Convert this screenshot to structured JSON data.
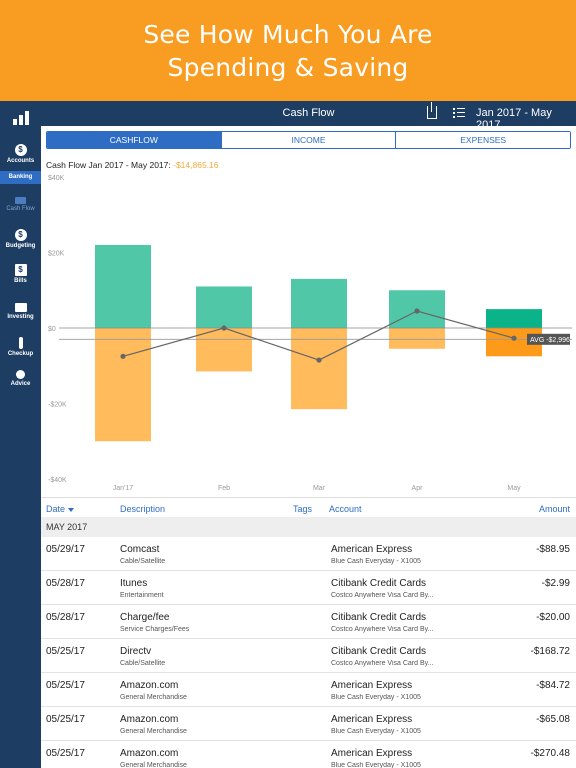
{
  "banner": {
    "line1": "See How Much You Are",
    "line2": "Spending & Saving"
  },
  "sidebar": {
    "items": [
      {
        "label": "Accounts",
        "icon": "dollar-icon"
      },
      {
        "label": "Banking",
        "icon": "none"
      },
      {
        "label": "Cash Flow",
        "icon": "cashflow-icon"
      },
      {
        "label": "Budgeting",
        "icon": "budget-icon"
      },
      {
        "label": "Bills",
        "icon": "bills-icon"
      },
      {
        "label": "Investing",
        "icon": "investing-icon"
      },
      {
        "label": "Checkup",
        "icon": "checkup-icon"
      },
      {
        "label": "Advice",
        "icon": "advice-icon"
      }
    ]
  },
  "topbar": {
    "title": "Cash Flow",
    "range": "Jan 2017 - May 2017"
  },
  "tabs": [
    {
      "label": "CASHFLOW",
      "active": true
    },
    {
      "label": "INCOME",
      "active": false
    },
    {
      "label": "EXPENSES",
      "active": false
    }
  ],
  "summary": {
    "label": "Cash Flow Jan 2017 - May 2017:",
    "value": "-$14,865.16"
  },
  "chart_data": {
    "type": "bar",
    "categories": [
      "Jan'17",
      "Feb",
      "Mar",
      "Apr",
      "May"
    ],
    "y_tick_labels": [
      "$40K",
      "$20K",
      "$0",
      "-$20K",
      "-$40K"
    ],
    "ylim": [
      -40000,
      40000
    ],
    "series": [
      {
        "values": [
          22000,
          11000,
          13000,
          10000,
          5000
        ],
        "color": "#50c8a8"
      },
      {
        "values": [
          -30000,
          -11500,
          -21500,
          -5500,
          -7500
        ],
        "color": "#ffbb5c"
      }
    ],
    "net_line": [
      -7500,
      0,
      -8500,
      4500,
      -2700
    ],
    "average": {
      "label": "AVG -$2,996",
      "value": -2996
    },
    "colors": {
      "income": "#50c8a8",
      "expense": "#ffbb5c",
      "income_current": "#0ab488",
      "expense_current": "#fd9a1a"
    }
  },
  "table": {
    "headers": {
      "date": "Date",
      "description": "Description",
      "tags": "Tags",
      "account": "Account",
      "amount": "Amount"
    },
    "section": "MAY 2017",
    "rows": [
      {
        "date": "05/29/17",
        "description": "Comcast",
        "category": "Cable/Satellite",
        "account": "American Express",
        "account_sub": "Blue Cash Everyday - X1005",
        "amount": "-$88.95"
      },
      {
        "date": "05/28/17",
        "description": "Itunes",
        "category": "Entertainment",
        "account": "Citibank Credit Cards",
        "account_sub": "Costco Anywhere Visa Card By...",
        "amount": "-$2.99"
      },
      {
        "date": "05/28/17",
        "description": "Charge/fee",
        "category": "Service Charges/Fees",
        "account": "Citibank Credit Cards",
        "account_sub": "Costco Anywhere Visa Card By...",
        "amount": "-$20.00"
      },
      {
        "date": "05/25/17",
        "description": "Directv",
        "category": "Cable/Satellite",
        "account": "Citibank Credit Cards",
        "account_sub": "Costco Anywhere Visa Card By...",
        "amount": "-$168.72"
      },
      {
        "date": "05/25/17",
        "description": "Amazon.com",
        "category": "General Merchandise",
        "account": "American Express",
        "account_sub": "Blue Cash Everyday - X1005",
        "amount": "-$84.72"
      },
      {
        "date": "05/25/17",
        "description": "Amazon.com",
        "category": "General Merchandise",
        "account": "American Express",
        "account_sub": "Blue Cash Everyday - X1005",
        "amount": "-$65.08"
      },
      {
        "date": "05/25/17",
        "description": "Amazon.com",
        "category": "General Merchandise",
        "account": "American Express",
        "account_sub": "Blue Cash Everyday - X1005",
        "amount": "-$270.48"
      }
    ]
  }
}
